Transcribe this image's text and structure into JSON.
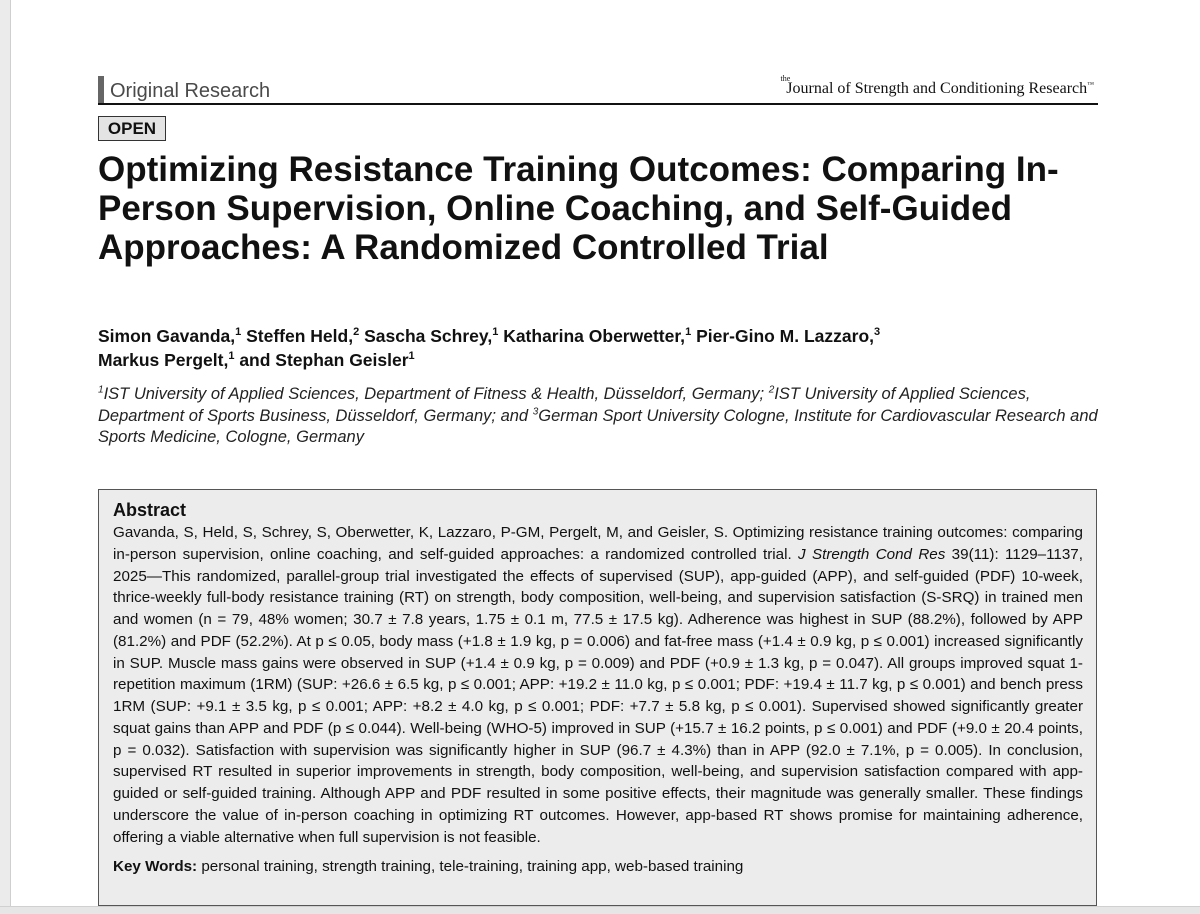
{
  "header": {
    "section_label": "Original Research",
    "journal_name": "Journal of Strength and Conditioning Research",
    "journal_name_parts": [
      "the",
      "Journal of Strength and Conditioning Research",
      "™"
    ]
  },
  "badge": "OPEN",
  "title": "Optimizing Resistance Training Outcomes: Comparing In-Person Supervision, Online Coaching, and Self-Guided Approaches: A Randomized Controlled Trial",
  "authors": [
    {
      "name": "Simon Gavanda,",
      "aff": "1"
    },
    {
      "name": "Steffen Held,",
      "aff": "2"
    },
    {
      "name": "Sascha Schrey,",
      "aff": "1"
    },
    {
      "name": "Katharina Oberwetter,",
      "aff": "1"
    },
    {
      "name": "Pier-Gino M. Lazzaro,",
      "aff": "3"
    },
    {
      "name": "Markus Pergelt,",
      "aff": "1"
    },
    {
      "name": "and Stephan Geisler",
      "aff": "1"
    }
  ],
  "affiliations": [
    {
      "num": "1",
      "text": "IST University of Applied Sciences, Department of Fitness & Health, Düsseldorf, Germany; "
    },
    {
      "num": "2",
      "text": "IST University of Applied Sciences, Department of Sports Business, Düsseldorf, Germany; and "
    },
    {
      "num": "3",
      "text": "German Sport University Cologne, Institute for Cardiovascular Research and Sports Medicine, Cologne, Germany"
    }
  ],
  "abstract": {
    "heading": "Abstract",
    "citation_lead": "Gavanda, S, Held, S, Schrey, S, Oberwetter, K, Lazzaro, P-GM, Pergelt, M, and Geisler, S. Optimizing resistance training outcomes: comparing in-person supervision, online coaching, and self-guided approaches: a randomized controlled trial.",
    "journal_abbrev": "J Strength Cond Res",
    "citation_rest": "39(11): 1129–1137, 2025—",
    "body": "This randomized, parallel-group trial investigated the effects of supervised (SUP), app-guided (APP), and self-guided (PDF) 10-week, thrice-weekly full-body resistance training (RT) on strength, body composition, well-being, and supervision satisfaction (S-SRQ) in trained men and women (n = 79, 48% women; 30.7 ± 7.8 years, 1.75 ± 0.1 m, 77.5 ± 17.5 kg). Adherence was highest in SUP (88.2%), followed by APP (81.2%) and PDF (52.2%). At p ≤ 0.05, body mass (+1.8 ± 1.9 kg, p = 0.006) and fat-free mass (+1.4 ± 0.9 kg, p ≤ 0.001) increased significantly in SUP. Muscle mass gains were observed in SUP (+1.4 ± 0.9 kg, p = 0.009) and PDF (+0.9 ± 1.3 kg, p = 0.047). All groups improved squat 1-repetition maximum (1RM) (SUP: +26.6 ± 6.5 kg, p ≤ 0.001; APP: +19.2 ± 11.0 kg, p ≤ 0.001; PDF: +19.4 ± 11.7 kg, p ≤ 0.001) and bench press 1RM (SUP: +9.1 ± 3.5 kg, p ≤ 0.001; APP: +8.2 ± 4.0 kg, p ≤ 0.001; PDF: +7.7 ± 5.8 kg, p ≤ 0.001). Supervised showed significantly greater squat gains than APP and PDF (p ≤ 0.044). Well-being (WHO-5) improved in SUP (+15.7 ± 16.2 points, p ≤ 0.001) and PDF (+9.0 ± 20.4 points, p = 0.032). Satisfaction with supervision was significantly higher in SUP (96.7 ± 4.3%) than in APP (92.0 ± 7.1%, p = 0.005). In conclusion, supervised RT resulted in superior improvements in strength, body composition, well-being, and supervision satisfaction compared with app-guided or self-guided training. Although APP and PDF resulted in some positive effects, their magnitude was generally smaller. These findings underscore the value of in-person coaching in optimizing RT outcomes. However, app-based RT shows promise for maintaining adherence, offering a viable alternative when full supervision is not feasible."
  },
  "keywords": {
    "label": "Key Words:",
    "text": "personal training, strength training, tele-training, training app, web-based training"
  }
}
